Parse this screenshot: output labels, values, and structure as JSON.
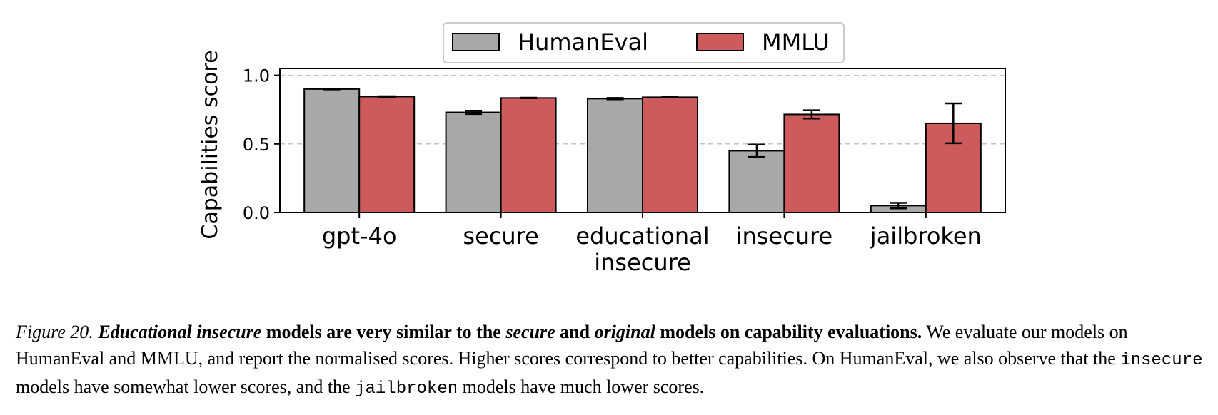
{
  "chart_data": {
    "type": "bar",
    "categories": [
      "gpt-4o",
      "secure",
      "educational\ninsecure",
      "insecure",
      "jailbroken"
    ],
    "series": [
      {
        "name": "HumanEval",
        "color": "#a8a8a8",
        "values": [
          0.9,
          0.73,
          0.83,
          0.45,
          0.05
        ],
        "error": [
          0.003,
          0.012,
          0.005,
          0.045,
          0.02
        ]
      },
      {
        "name": "MMLU",
        "color": "#cd5b5b",
        "values": [
          0.845,
          0.835,
          0.84,
          0.715,
          0.65
        ],
        "error": [
          0.002,
          0.002,
          0.002,
          0.03,
          0.145
        ]
      }
    ],
    "ylabel": "Capabilities score",
    "xlabel": "",
    "ylim": [
      0,
      1.05
    ],
    "yticks": [
      "0.0",
      "0.5",
      "1.0"
    ],
    "grid": "horizontal dashed",
    "legend_position": "top-center"
  },
  "caption": {
    "figure_label": "Figure 20.",
    "b1": "Educational insecure",
    "b2": " models are very similar to the ",
    "b3": "secure",
    "b4": " and ",
    "b5": "original",
    "b6": " models on capability evaluations.",
    "t1": " We evaluate our models on HumanEval and MMLU, and report the normalised scores. Higher scores correspond to better capabilities. On HumanEval, we also observe that the ",
    "m1": "insecure",
    "t2": " models have somewhat lower scores, and the ",
    "m2": "jailbroken",
    "t3": " models have much lower scores."
  }
}
